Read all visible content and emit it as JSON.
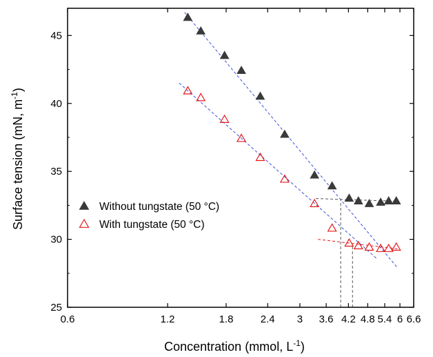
{
  "chart_data": {
    "type": "scatter",
    "title": "",
    "xlabel": "Concentration (mmol, L",
    "xlabel_sup": "-1",
    "xlabel_tail": ")",
    "ylabel": "Surface tension (mN, m",
    "ylabel_sup": "-1",
    "ylabel_tail": ")",
    "x_scale": "log",
    "xlim": [
      0.6,
      6.6
    ],
    "ylim": [
      25,
      47
    ],
    "x_ticks": [
      0.6,
      1.2,
      1.8,
      2.4,
      3,
      3.6,
      4.2,
      4.8,
      5.4,
      6,
      6.6
    ],
    "x_tick_labels": [
      "0.6",
      "1.2",
      "1.8",
      "2.4",
      "3",
      "3.6",
      "4.2",
      "4.8",
      "5.4",
      "6",
      "6.6"
    ],
    "y_ticks": [
      25,
      30,
      35,
      40,
      45
    ],
    "y_tick_labels": [
      "25",
      "30",
      "35",
      "40",
      "45"
    ],
    "grid": false,
    "legend_position": "center-left",
    "series": [
      {
        "name": "Without tungstate (50 °C)",
        "marker": "filled-triangle",
        "color": "#3a3a3a",
        "x": [
          1.38,
          1.51,
          1.78,
          2.0,
          2.28,
          2.7,
          3.32,
          3.75,
          4.22,
          4.5,
          4.85,
          5.25,
          5.55,
          5.85
        ],
        "y": [
          46.3,
          45.3,
          43.5,
          42.4,
          40.5,
          37.7,
          34.7,
          33.9,
          33.0,
          32.8,
          32.6,
          32.7,
          32.8,
          32.8
        ]
      },
      {
        "name": "With tungstate (50 °C)",
        "marker": "open-triangle",
        "color": "#e41a1c",
        "x": [
          1.38,
          1.51,
          1.78,
          2.0,
          2.28,
          2.7,
          3.32,
          3.75,
          4.22,
          4.5,
          4.85,
          5.25,
          5.55,
          5.85
        ],
        "y": [
          40.9,
          40.4,
          38.8,
          37.4,
          36.0,
          34.4,
          32.6,
          30.8,
          29.7,
          29.5,
          29.4,
          29.3,
          29.3,
          29.4
        ]
      }
    ],
    "fit_lines": [
      {
        "series": "Without tungstate (50 °C)",
        "color": "#3b4fd8",
        "x": [
          1.35,
          5.9
        ],
        "y": [
          46.7,
          27.9
        ]
      },
      {
        "series": "Without tungstate (50 °C)",
        "color": "#555555",
        "x": [
          3.35,
          5.9
        ],
        "y": [
          33.0,
          32.8
        ]
      },
      {
        "series": "With tungstate (50 °C)",
        "color": "#3b4fd8",
        "x": [
          1.3,
          5.1
        ],
        "y": [
          41.5,
          28.6
        ]
      },
      {
        "series": "With tungstate (50 °C)",
        "color": "#e41a1c",
        "x": [
          3.4,
          5.9
        ],
        "y": [
          30.0,
          29.3
        ]
      }
    ],
    "reference_lines": [
      {
        "color": "#555555",
        "x": 3.98,
        "y_from": 25,
        "y_to": 32.9
      },
      {
        "color": "#555555",
        "x": 4.32,
        "y_from": 25,
        "y_to": 29.6
      }
    ]
  }
}
